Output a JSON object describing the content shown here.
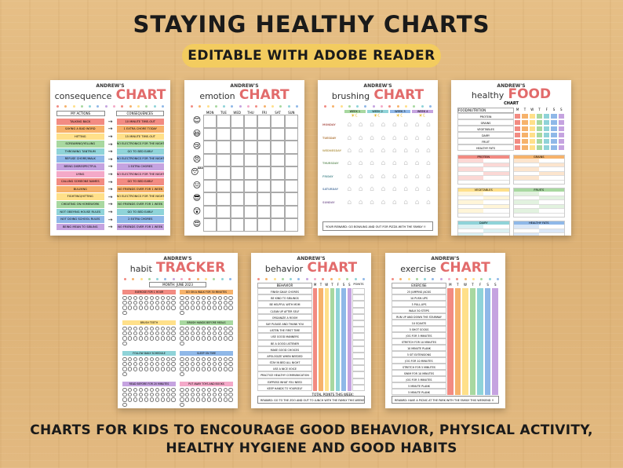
{
  "header": {
    "title": "STAYING HEALTHY CHARTS",
    "subtitle": "EDITABLE WITH ADOBE READER"
  },
  "footer": {
    "line1": "CHARTS FOR KIDS TO ENCOURAGE GOOD BEHAVIOR, PHYSICAL ACTIVITY,",
    "line2": "HEALTHY HYGIENE AND GOOD HABITS"
  },
  "colors": {
    "red": "#f28b82",
    "orange": "#f6b26b",
    "yellow": "#ffe08a",
    "green": "#a8d8a0",
    "teal": "#8fd3d8",
    "blue": "#8fb8e8",
    "purple": "#c5a3e0",
    "pink": "#f4a9c8"
  },
  "cards": {
    "consequence": {
      "name": "ANDREW'S",
      "title_a": "consequence",
      "title_b": "CHART",
      "col1": "MY ACTIONS",
      "col2": "CONSEQUENCES",
      "actions": [
        "TALKING BACK",
        "SAYING A BAD WORD",
        "HITTING",
        "SCREAMING/YELLING",
        "THROWING TANTRUM",
        "REFUSE CHORE/WALK",
        "BEING DISRESPECTFUL",
        "LYING",
        "CALLING SOMEONE NAMES",
        "BULLYING",
        "FIGHTING/HITTING",
        "CHEATING ON HOMEWORK",
        "NOT OBEYING HOUSE RULES",
        "NOT DOING SCHOOL RULES",
        "BEING MEAN TO SIBLING"
      ],
      "consequences": [
        "10 MINUTE TIME-OUT",
        "1 EXTRA CHORE TODAY",
        "15 MINUTE TIME-OUT",
        "NO ELECTRONICS FOR THE NIGHT",
        "GO TO BED EARLY",
        "NO ELECTRONICS FOR THE NIGHT",
        "1 EXTRA CHORES",
        "NO ELECTRONICS FOR THE NIGHT",
        "GO TO BED EARLY",
        "NO FRIENDS OVER FOR 1 WEEK",
        "NO ELECTRONICS FOR THE NIGHT",
        "NO FRIENDS OVER FOR 1 WEEK",
        "GO TO BED EARLY",
        "2 EXTRA CHORES",
        "NO FRIENDS OVER FOR 1 WEEK"
      ]
    },
    "emotion": {
      "name": "ANDREW'S",
      "title_a": "emotion",
      "title_b": "CHART",
      "days": [
        "MON",
        "TUE",
        "WED",
        "THU",
        "FRI",
        "SAT",
        "SUN"
      ],
      "faces": [
        "😊",
        "😃",
        "😢",
        "😠",
        "😴",
        "😐",
        "😎",
        "😲",
        "😍"
      ]
    },
    "brushing": {
      "name": "ANDREW'S",
      "title_a": "brushing",
      "title_b": "CHART",
      "weeks": [
        "WEEK 1",
        "WEEK 2",
        "WEEK 3",
        "WEEK 4"
      ],
      "days": [
        "MONDAY",
        "TUESDAY",
        "WEDNESDAY",
        "THURSDAY",
        "FRIDAY",
        "SATURDAY",
        "SUNDAY"
      ],
      "reward": "YOUR REWARD: GO BOWLING AND OUT FOR PIZZA WITH THE FAMILY !!"
    },
    "food": {
      "name": "ANDREW'S",
      "title_a": "healthy",
      "title_b": "FOOD",
      "title_c": "CHART",
      "col": "FOOD/NUTRITION",
      "days": [
        "M",
        "T",
        "W",
        "T",
        "F",
        "S",
        "S"
      ],
      "rows": [
        "PROTEIN",
        "GRAINS",
        "VEGETABLES",
        "DAIRY",
        "FRUIT",
        "HEALTHY FATS"
      ],
      "sections": [
        "PROTEIN",
        "GRAINS",
        "VEGETABLES",
        "FRUITS",
        "DAIRY",
        "HEALTHY FATS"
      ]
    },
    "habit": {
      "name": "ANDREW'S",
      "title_a": "habit",
      "title_b": "TRACKER",
      "month": "MONTH: JUNE 2023",
      "habits": [
        "EXERCISE FOR 1 HOUR",
        "GO ON A WALK FOR 30 MINUTES",
        "BRUSH TEETH",
        "BRUSH HANDS BEFORE MEALS",
        "FOLLOW DAILY SCHEDULE",
        "SLEEP ON TIME",
        "READ BEFORE FOR 20 MINUTES",
        "PUT AWAY TOYS AND BOOKS"
      ]
    },
    "behavior": {
      "name": "ANDREW'S",
      "title_a": "behavior",
      "title_b": "CHART",
      "col": "BEHAVIOR",
      "days": [
        "M",
        "T",
        "W",
        "T",
        "F",
        "S",
        "S"
      ],
      "points": "POINTS",
      "rows": [
        "FINISH DAILY CHORES",
        "BE KIND TO SIBLINGS",
        "BE HELPFUL WITH MOM",
        "CLEAN UP AFTER SELF",
        "ORGANIZE A ROOM",
        "SAY PLEASE AND THANK YOU",
        "LISTEN THE FIRST TIME",
        "USE GOOD MANNERS",
        "BE A GOOD LISTENER",
        "MAKE GOOD CHOICES",
        "APOLOGIZE WHEN NEEDED",
        "STAY IN BED ALL NIGHT",
        "USE A NICE VOICE",
        "PRACTICE HEALTHY COMMUNICATION",
        "EXPRESS WHAT YOU NEED",
        "KEEP HANDS TO YOURSELF"
      ],
      "total": "TOTAL POINTS THIS WEEK:",
      "reward": "REWARD: GO TO THE ZOO AND OUT TO LUNCH WITH THE FAMILY THIS WEEKEND !!"
    },
    "exercise": {
      "name": "ANDREW'S",
      "title_a": "exercise",
      "title_b": "CHART",
      "col": "EXERCISE",
      "days": [
        "M",
        "T",
        "W",
        "T",
        "F",
        "S",
        "S"
      ],
      "rows": [
        "25 JUMPING JACKS",
        "10 PUSH-UPS",
        "5 PULL-UPS",
        "WALK 50 STEPS",
        "RUN UP AND DOWN THE STAIRWAY",
        "10 SQUATS",
        "5 SHOT SOCKS",
        "JOG FOR 5 MINUTES",
        "STRETCH FOR 10 MINUTES",
        "10 MINUTE PLANK",
        "5 SIT EXTENSIONS",
        "JOG FOR 10 MINUTES",
        "STRETCH FOR 5 MINUTES",
        "SWIM FOR 10 MINUTES",
        "JOG FOR 5 MINUTES",
        "5 MINUTE PLANK",
        "5 MINUTE PLANK"
      ],
      "reward": "REWARD: HAVE A PICNIC AT THE PARK WITH THE FAMILY THIS WEEKEND !!"
    }
  }
}
